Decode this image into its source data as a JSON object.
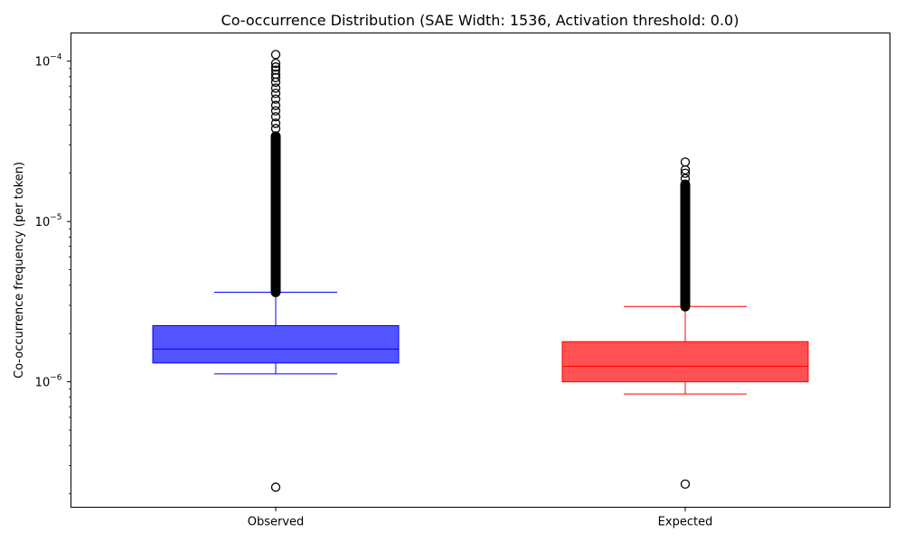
{
  "chart_data": {
    "type": "box",
    "title": "Co-occurrence Distribution (SAE Width: 1536, Activation threshold: 0.0)",
    "xlabel": "",
    "ylabel": "Co-occurrence frequency (per token)",
    "yscale": "log",
    "ylim": [
      1.65e-07,
      0.00015
    ],
    "yticks": [
      {
        "value": 1e-06,
        "base": "10",
        "exp": "−6"
      },
      {
        "value": 1e-05,
        "base": "10",
        "exp": "−5"
      },
      {
        "value": 0.0001,
        "base": "10",
        "exp": "−4"
      }
    ],
    "categories": [
      "Observed",
      "Expected"
    ],
    "series": [
      {
        "name": "Observed",
        "color": "#0000ff",
        "fill": "#4b4bff",
        "whisker_low": 1.12e-06,
        "q1": 1.31e-06,
        "median": 1.6e-06,
        "q3": 2.24e-06,
        "whisker_high": 3.62e-06,
        "outlier_dense_range": [
          3.62e-06,
          3.4e-05
        ],
        "outliers": [
          2.2e-07,
          3.8e-05,
          4.1e-05,
          4.5e-05,
          4.9e-05,
          5.3e-05,
          5.8e-05,
          6.3e-05,
          6.8e-05,
          7.4e-05,
          7.9e-05,
          8.3e-05,
          8.8e-05,
          9.2e-05,
          9.7e-05,
          0.00011
        ]
      },
      {
        "name": "Expected",
        "color": "#ff0000",
        "fill": "#ff4848",
        "whisker_low": 8.4e-07,
        "q1": 1e-06,
        "median": 1.25e-06,
        "q3": 1.78e-06,
        "whisker_high": 2.95e-06,
        "outlier_dense_range": [
          2.95e-06,
          1.7e-05
        ],
        "outliers": [
          2.3e-07,
          1.85e-05,
          2e-05,
          2.1e-05,
          2.35e-05
        ]
      }
    ]
  }
}
